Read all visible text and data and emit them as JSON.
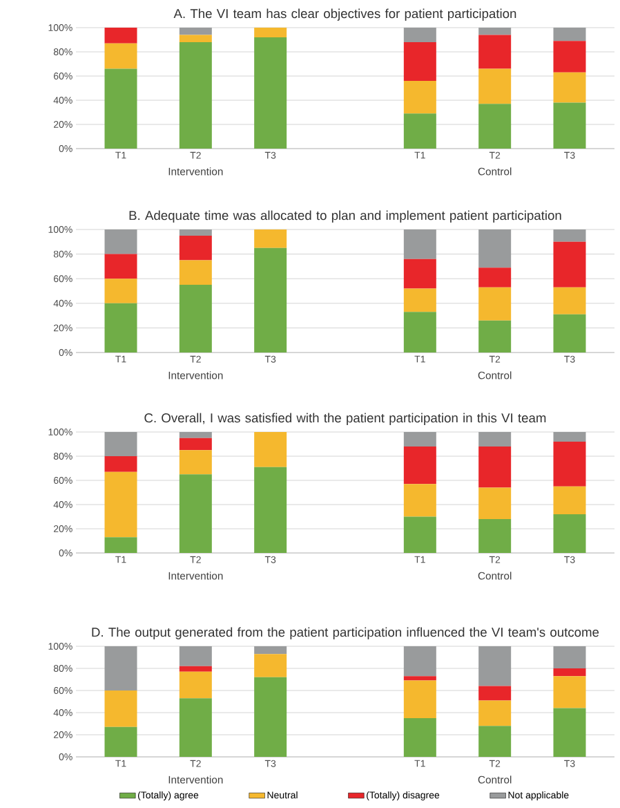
{
  "chart_data": [
    {
      "type": "bar",
      "stacked": true,
      "title": "A. The VI team has clear objectives for patient participation",
      "categories": [
        "T1",
        "T2",
        "T3",
        null,
        "T1",
        "T2",
        "T3"
      ],
      "series": [
        {
          "color": "#70ad47",
          "values": [
            66,
            88,
            92,
            null,
            29,
            37,
            38
          ]
        },
        {
          "color": "#f5b82e",
          "values": [
            21,
            6,
            8,
            null,
            27,
            29,
            25
          ]
        },
        {
          "color": "#e8262a",
          "values": [
            13,
            0,
            0,
            null,
            32,
            28,
            26
          ]
        },
        {
          "color": "#999b9c",
          "values": [
            0,
            6,
            0,
            null,
            12,
            6,
            11
          ]
        }
      ],
      "ylim": [
        0,
        100
      ],
      "yticks": [
        {
          "value": 0,
          "label": "0%"
        },
        {
          "value": 20,
          "label": "20%"
        },
        {
          "value": 40,
          "label": "40%"
        },
        {
          "value": 60,
          "label": "60%"
        },
        {
          "value": 80,
          "label": "80%"
        },
        {
          "value": 100,
          "label": "100%"
        }
      ],
      "grid": "y",
      "annotations": [
        "Intervention",
        "Control"
      ]
    },
    {
      "type": "bar",
      "stacked": true,
      "title": "B. Adequate time was allocated to plan and implement patient participation",
      "categories": [
        "T1",
        "T2",
        "T3",
        null,
        "T1",
        "T2",
        "T3"
      ],
      "series": [
        {
          "color": "#70ad47",
          "values": [
            40,
            55,
            85,
            null,
            33,
            26,
            31
          ]
        },
        {
          "color": "#f5b82e",
          "values": [
            20,
            20,
            15,
            null,
            19,
            27,
            22
          ]
        },
        {
          "color": "#e8262a",
          "values": [
            20,
            20,
            0,
            null,
            24,
            16,
            37
          ]
        },
        {
          "color": "#999b9c",
          "values": [
            20,
            5,
            0,
            null,
            24,
            31,
            10
          ]
        }
      ],
      "ylim": [
        0,
        100
      ],
      "yticks": [
        {
          "value": 0,
          "label": "0%"
        },
        {
          "value": 20,
          "label": "20%"
        },
        {
          "value": 40,
          "label": "40%"
        },
        {
          "value": 60,
          "label": "60%"
        },
        {
          "value": 80,
          "label": "80%"
        },
        {
          "value": 100,
          "label": "100%"
        }
      ],
      "grid": "y",
      "annotations": [
        "Intervention",
        "Control"
      ]
    },
    {
      "type": "bar",
      "stacked": true,
      "title": "C. Overall, I was satisfied with the patient participation in this VI team",
      "categories": [
        "T1",
        "T2",
        "T3",
        null,
        "T1",
        "T2",
        "T3"
      ],
      "series": [
        {
          "color": "#70ad47",
          "values": [
            13,
            65,
            71,
            null,
            30,
            28,
            32
          ]
        },
        {
          "color": "#f5b82e",
          "values": [
            54,
            20,
            29,
            null,
            27,
            26,
            23
          ]
        },
        {
          "color": "#e8262a",
          "values": [
            13,
            10,
            0,
            null,
            31,
            34,
            37
          ]
        },
        {
          "color": "#999b9c",
          "values": [
            20,
            5,
            0,
            null,
            12,
            12,
            8
          ]
        }
      ],
      "ylim": [
        0,
        100
      ],
      "yticks": [
        {
          "value": 0,
          "label": "0%"
        },
        {
          "value": 20,
          "label": "20%"
        },
        {
          "value": 40,
          "label": "40%"
        },
        {
          "value": 60,
          "label": "60%"
        },
        {
          "value": 80,
          "label": "80%"
        },
        {
          "value": 100,
          "label": "100%"
        }
      ],
      "grid": "y",
      "annotations": [
        "Intervention",
        "Control"
      ]
    },
    {
      "type": "bar",
      "stacked": true,
      "title": "D. The output generated from the patient participation influenced the VI team's outcome",
      "categories": [
        "T1",
        "T2",
        "T3",
        null,
        "T1",
        "T2",
        "T3"
      ],
      "series": [
        {
          "name": "(Totally) agree",
          "color": "#70ad47",
          "values": [
            27,
            53,
            72,
            null,
            35,
            28,
            44
          ]
        },
        {
          "name": "Neutral",
          "color": "#f5b82e",
          "values": [
            33,
            24,
            21,
            null,
            34,
            23,
            29
          ]
        },
        {
          "name": "(Totally) disagree",
          "color": "#e8262a",
          "values": [
            0,
            5,
            0,
            null,
            4,
            13,
            7
          ]
        },
        {
          "name": "Not applicable",
          "color": "#999b9c",
          "values": [
            40,
            18,
            7,
            null,
            27,
            36,
            20
          ]
        }
      ],
      "ylim": [
        0,
        100
      ],
      "yticks": [
        {
          "value": 0,
          "label": "0%"
        },
        {
          "value": 20,
          "label": "20%"
        },
        {
          "value": 40,
          "label": "40%"
        },
        {
          "value": 60,
          "label": "60%"
        },
        {
          "value": 80,
          "label": "80%"
        },
        {
          "value": 100,
          "label": "100%"
        }
      ],
      "grid": "y",
      "legend": "bottom",
      "annotations": [
        "Intervention",
        "Control"
      ]
    }
  ]
}
